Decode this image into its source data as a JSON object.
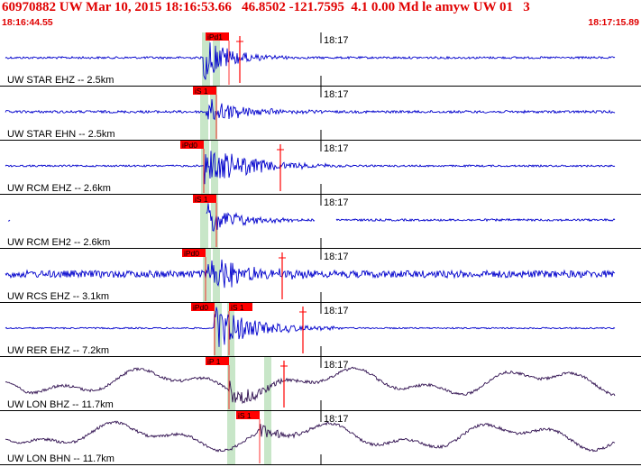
{
  "header": {
    "title": "60970882 UW Mar 10, 2015 18:16:53.66   46.8502 -121.7595  4.1 0.00 Md le amyw UW 01   3",
    "start_time": "18:16:44.55",
    "end_time": "18:17:15.89"
  },
  "colors": {
    "header_red": "#e00000",
    "pick_red": "#ff0000",
    "trace_blue": "#0000cc",
    "trace_purple": "#301050",
    "pick_green": "#c8e6c8",
    "grid": "#000000"
  },
  "panels": [
    {
      "label": "UW STAR EHZ -- 2.5km",
      "time_tick": "18:17",
      "color": "blue",
      "picks": [
        "iPd1"
      ]
    },
    {
      "label": "UW STAR EHN -- 2.5km",
      "time_tick": "18:17",
      "color": "blue",
      "picks": [
        "iS 1"
      ]
    },
    {
      "label": "UW RCM EHZ -- 2.6km",
      "time_tick": "18:17",
      "color": "blue",
      "picks": [
        "iPd0"
      ]
    },
    {
      "label": "UW RCM EH2 -- 2.6km",
      "time_tick": "18:17",
      "color": "blue",
      "picks": [
        "iS 1"
      ]
    },
    {
      "label": "UW RCS EHZ -- 3.1km",
      "time_tick": "18:17",
      "color": "blue",
      "picks": [
        "iPd0"
      ]
    },
    {
      "label": "UW RER EHZ -- 7.2km",
      "time_tick": "18:17",
      "color": "blue",
      "picks": [
        "iPd0",
        "iS 1"
      ]
    },
    {
      "label": "UW LON BHZ -- 11.7km",
      "time_tick": "18:17",
      "color": "purple",
      "picks": [
        "iP 1"
      ]
    },
    {
      "label": "UW LON BHN -- 11.7km",
      "time_tick": "18:17",
      "color": "purple",
      "picks": [
        "iS 1"
      ]
    }
  ]
}
